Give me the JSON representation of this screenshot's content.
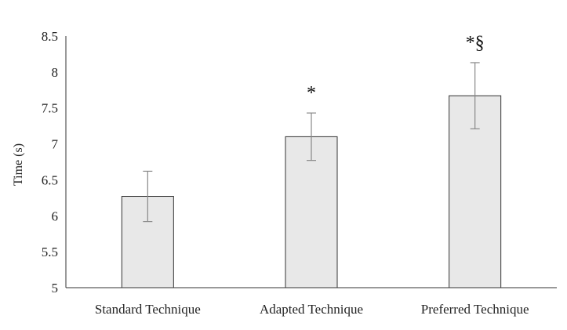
{
  "chart_data": {
    "type": "bar",
    "title": "",
    "xlabel": "",
    "ylabel": "Time (s)",
    "ylim": [
      5,
      8.5
    ],
    "yticks": [
      5,
      5.5,
      6,
      6.5,
      7,
      7.5,
      8,
      8.5
    ],
    "ytick_labels": [
      "5",
      "5.5",
      "6",
      "6.5",
      "7",
      "7.5",
      "8",
      "8.5"
    ],
    "grid": false,
    "categories": [
      "Standard Technique",
      "Adapted Technique",
      "Preferred Technique"
    ],
    "values": [
      6.27,
      7.1,
      7.67
    ],
    "errors": [
      0.35,
      0.33,
      0.46
    ],
    "annotations": [
      "",
      "*",
      "*§"
    ],
    "colors": {
      "bar_fill": "#e8e8e8",
      "bar_stroke": "#333333",
      "error_bar": "#888888",
      "axis": "#333333"
    }
  }
}
